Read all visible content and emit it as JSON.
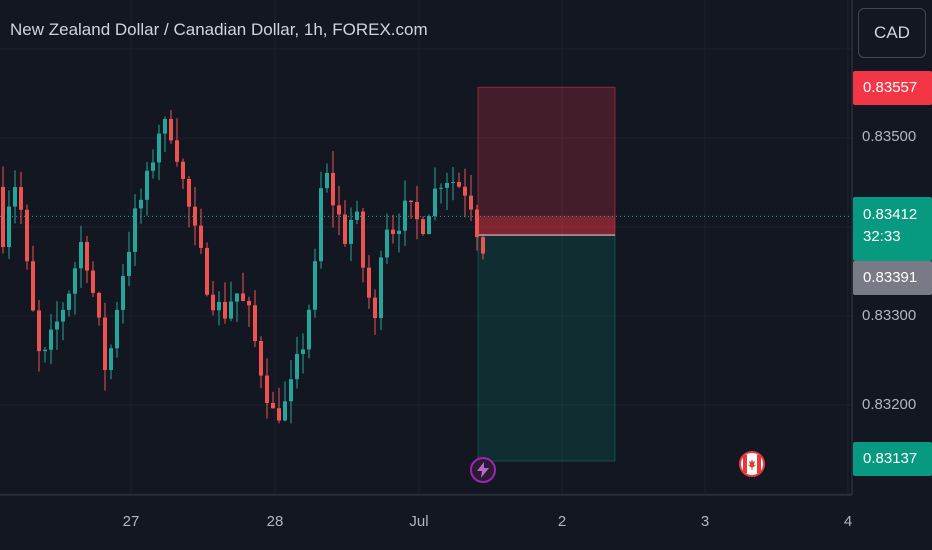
{
  "header": {
    "title": "New Zealand Dollar / Canadian Dollar, 1h, FOREX.com"
  },
  "currency_button": {
    "label": "CAD"
  },
  "price_axis": {
    "labels": [
      "0.83500",
      "0.83300",
      "0.83200"
    ]
  },
  "badges": {
    "stop": "0.83557",
    "current_price": "0.83412",
    "countdown": "32:33",
    "entry": "0.83391",
    "target": "0.83137"
  },
  "time_axis": {
    "labels": [
      "27",
      "28",
      "Jul",
      "2",
      "3",
      "4"
    ]
  },
  "events": {
    "flash": "lightning-icon",
    "canada": "canada-flag-icon"
  },
  "colors": {
    "up": "#26a69a",
    "down": "#ef5350",
    "stop_zone": "#f2364540",
    "target_zone": "#08998140",
    "badge_red": "#f23645",
    "badge_green": "#089981",
    "badge_gray": "#787b86"
  },
  "chart_data": {
    "type": "candlestick",
    "title": "New Zealand Dollar / Canadian Dollar, 1h, FOREX.com",
    "y_ticks": [
      0.835,
      0.833,
      0.832
    ],
    "x_ticks": [
      "27",
      "28",
      "Jul",
      "2",
      "3",
      "4"
    ],
    "current_price": 0.83412,
    "position": {
      "stop": 0.83557,
      "entry": 0.83391,
      "target": 0.83137
    }
  }
}
